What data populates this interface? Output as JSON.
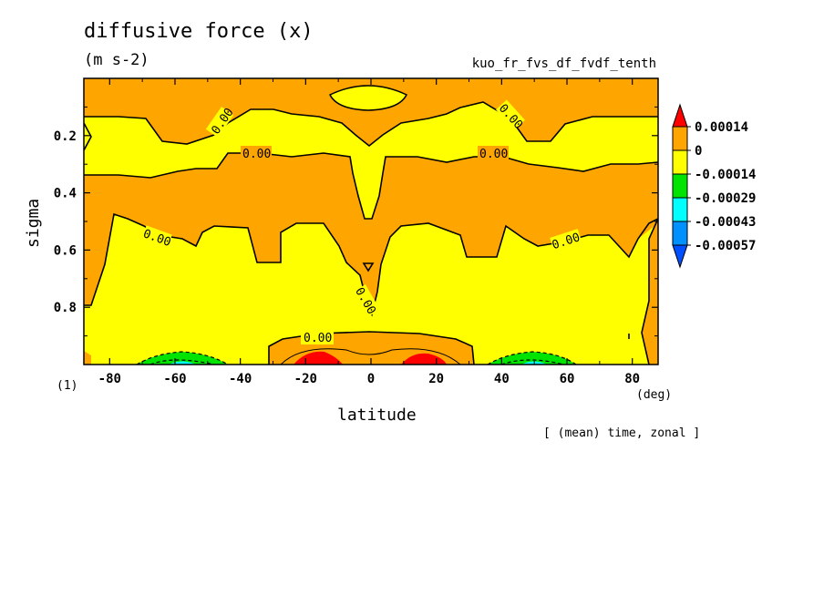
{
  "chart_data": {
    "type": "contour",
    "title": "diffusive force (x)",
    "units": "(m s-2)",
    "dataset": "kuo_fr_fvs_df_fvdf_tenth",
    "xlabel": "latitude",
    "xunits": "(deg)",
    "ylabel": "sigma",
    "scale_factor": "(1)",
    "footnote": "[ (mean) time, zonal ]",
    "xlim": [
      -87.9,
      87.9
    ],
    "ylim": [
      0.0,
      1.0
    ],
    "y_inverted": true,
    "x_ticks": [
      "-80",
      "-60",
      "-40",
      "-20",
      "0",
      "20",
      "40",
      "60",
      "80"
    ],
    "y_ticks": [
      "0.2",
      "0.4",
      "0.6",
      "0.8"
    ],
    "colorbar": {
      "labels": [
        "0.00014",
        "0",
        "-0.00014",
        "-0.00029",
        "-0.00043",
        "-0.00057"
      ],
      "colors": [
        "#ff0000",
        "#ffa500",
        "#ffff00",
        "#00e400",
        "#00ffff",
        "#0091ff",
        "#0050ff"
      ]
    },
    "contour_labels": [
      "0.00",
      "0.00",
      "0.00",
      "0.00",
      "0.00",
      "0.00",
      "0.00",
      "0.00"
    ],
    "levels_approx": {
      "top_orange_layer_sigma": [
        0.03,
        0.13
      ],
      "upper_yellow_band_sigma": [
        0.13,
        0.3
      ],
      "middle_orange_band_sigma": [
        0.3,
        0.55
      ],
      "lower_yellow_region_sigma": [
        0.55,
        0.93
      ],
      "surface_orange_layer_sigma": [
        0.93,
        1.0
      ],
      "equatorial_yellow_gap_latitude": [
        -5,
        5
      ]
    }
  }
}
